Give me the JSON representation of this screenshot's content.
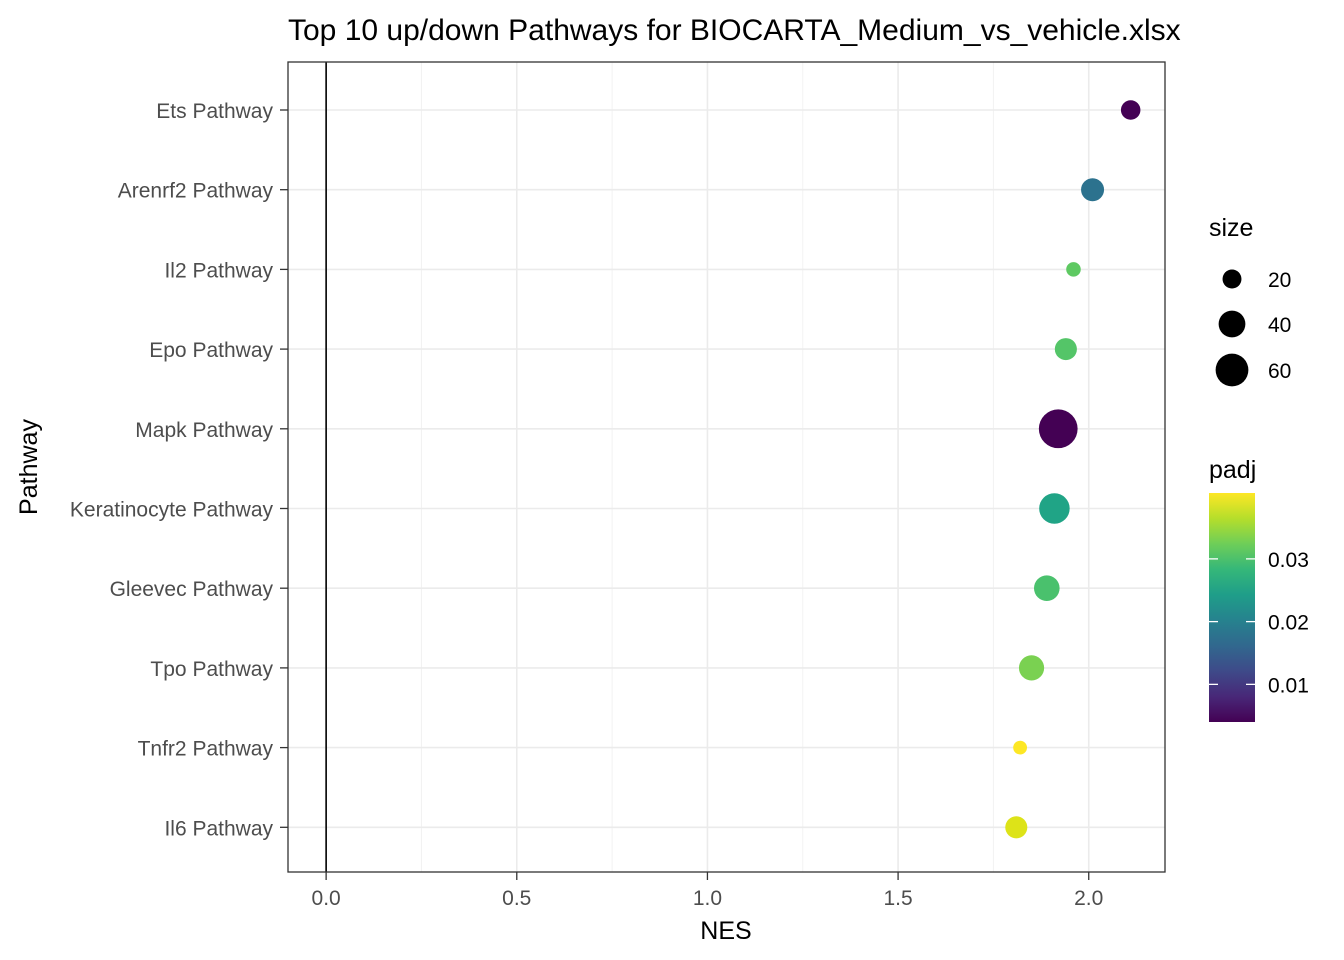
{
  "chart_data": {
    "type": "scatter",
    "title": "Top 10 up/down Pathways for  BIOCARTA_Medium_vs_vehicle.xlsx",
    "xlabel": "NES",
    "ylabel": "Pathway",
    "xlim": [
      -0.1,
      2.2
    ],
    "x_ticks": [
      0.0,
      0.5,
      1.0,
      1.5,
      2.0
    ],
    "x_tick_labels": [
      "0.0",
      "0.5",
      "1.0",
      "1.5",
      "2.0"
    ],
    "vline_x": 0,
    "grid": true,
    "categories": [
      "Ets Pathway",
      "Arenrf2 Pathway",
      "Il2 Pathway",
      "Epo Pathway",
      "Mapk Pathway",
      "Keratinocyte Pathway",
      "Gleevec Pathway",
      "Tpo Pathway",
      "Tnfr2 Pathway",
      "Il6 Pathway"
    ],
    "points": [
      {
        "pathway": "Ets Pathway",
        "NES": 2.11,
        "size": 18,
        "padj": 0.005,
        "color": "#440154"
      },
      {
        "pathway": "Arenrf2 Pathway",
        "NES": 2.01,
        "size": 25,
        "padj": 0.018,
        "color": "#2c728e"
      },
      {
        "pathway": "Il2 Pathway",
        "NES": 1.96,
        "size": 10,
        "padj": 0.031,
        "color": "#5ec962"
      },
      {
        "pathway": "Epo Pathway",
        "NES": 1.94,
        "size": 23,
        "padj": 0.032,
        "color": "#54c568"
      },
      {
        "pathway": "Mapk Pathway",
        "NES": 1.92,
        "size": 71,
        "padj": 0.004,
        "color": "#440154"
      },
      {
        "pathway": "Keratinocyte Pathway",
        "NES": 1.91,
        "size": 44,
        "padj": 0.024,
        "color": "#20a486"
      },
      {
        "pathway": "Gleevec Pathway",
        "NES": 1.89,
        "size": 31,
        "padj": 0.031,
        "color": "#4ac16d"
      },
      {
        "pathway": "Tpo Pathway",
        "NES": 1.85,
        "size": 30,
        "padj": 0.034,
        "color": "#7ad151"
      },
      {
        "pathway": "Tnfr2 Pathway",
        "NES": 1.82,
        "size": 9,
        "padj": 0.04,
        "color": "#fde725"
      },
      {
        "pathway": "Il6 Pathway",
        "NES": 1.81,
        "size": 23,
        "padj": 0.039,
        "color": "#dde318"
      }
    ],
    "legend_size": {
      "title": "size",
      "values": [
        20,
        40,
        60
      ],
      "labels": [
        "20",
        "40",
        "60"
      ]
    },
    "legend_color": {
      "title": "padj",
      "range": [
        0.004,
        0.0405
      ],
      "ticks": [
        0.01,
        0.02,
        0.03
      ],
      "tick_labels": [
        "0.01",
        "0.02",
        "0.03"
      ],
      "palette": [
        "#440154",
        "#482878",
        "#3e4a89",
        "#31688e",
        "#26828e",
        "#1f9e89",
        "#35b779",
        "#6ece58",
        "#b5de2b",
        "#fde725"
      ]
    },
    "legend_placement": "right"
  }
}
